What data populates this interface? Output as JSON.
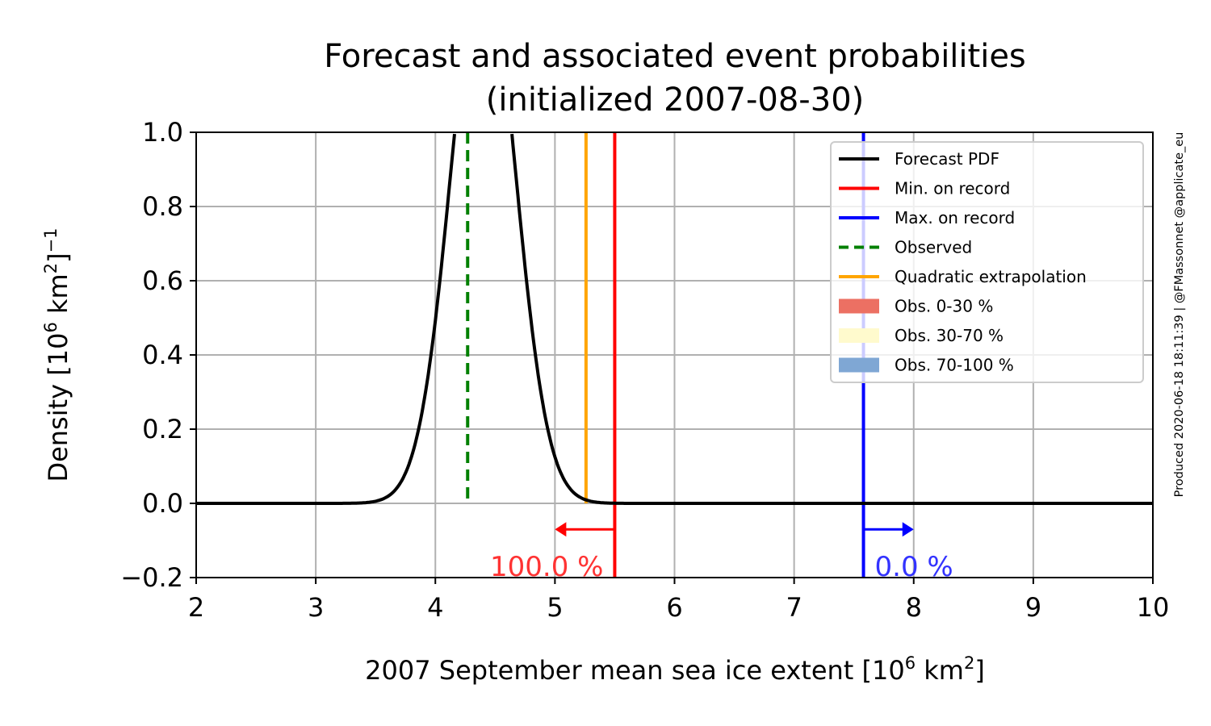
{
  "chart_data": {
    "type": "line",
    "title_line1": "Forecast and associated event probabilities",
    "title_line2": "(initialized 2007-08-30)",
    "xlabel": "2007 September mean sea ice extent [10",
    "xlabel_sup": "6",
    "xlabel_mid": " km",
    "xlabel_sup2": "2",
    "xlabel_end": "]",
    "ylabel": "Density [10",
    "ylabel_sup": "6",
    "ylabel_mid": " km",
    "ylabel_sup2": "2",
    "ylabel_end": "]",
    "ylabel_exp": "−1",
    "xlim": [
      2,
      10
    ],
    "ylim": [
      -0.2,
      1.0
    ],
    "xticks": [
      2,
      3,
      4,
      5,
      6,
      7,
      8,
      9,
      10
    ],
    "xtick_labels": [
      "2",
      "3",
      "4",
      "5",
      "6",
      "7",
      "8",
      "9",
      "10"
    ],
    "yticks": [
      -0.2,
      0.0,
      0.2,
      0.4,
      0.6,
      0.8,
      1.0
    ],
    "ytick_labels": [
      "−0.2",
      "0.0",
      "0.2",
      "0.4",
      "0.6",
      "0.8",
      "1.0"
    ],
    "grid": true,
    "forecast_pdf": {
      "name": "Forecast PDF",
      "mean": 4.4,
      "std": 0.27,
      "color": "#000000"
    },
    "min_on_record": {
      "name": "Min. on record",
      "value": 5.5,
      "color": "#ff0000"
    },
    "max_on_record": {
      "name": "Max. on record",
      "value": 7.58,
      "color": "#0000ff"
    },
    "observed": {
      "name": "Observed",
      "value": 4.27,
      "color": "#008000"
    },
    "quadratic_extrapolation": {
      "name": "Quadratic extrapolation",
      "value": 5.26,
      "color": "#ffa500"
    },
    "legend_patches": [
      {
        "name": "Obs. 0-30 %",
        "color": "#ec7063"
      },
      {
        "name": "Obs. 30-70 %",
        "color": "#fffacd"
      },
      {
        "name": "Obs. 70-100 %",
        "color": "#7fa7d4"
      }
    ],
    "legend_position": "upper right",
    "annotations": {
      "below_min": {
        "text": "100.0 %",
        "color": "#ff3333",
        "arrow_to": 5.0,
        "arrow_y": -0.07
      },
      "above_max": {
        "text": "0.0 %",
        "color": "#3333ff",
        "arrow_to": 8.0,
        "arrow_y": -0.07
      }
    },
    "credit": "Produced 2020-06-18 18:11:39 | @FMassonnet @applicate_eu"
  }
}
